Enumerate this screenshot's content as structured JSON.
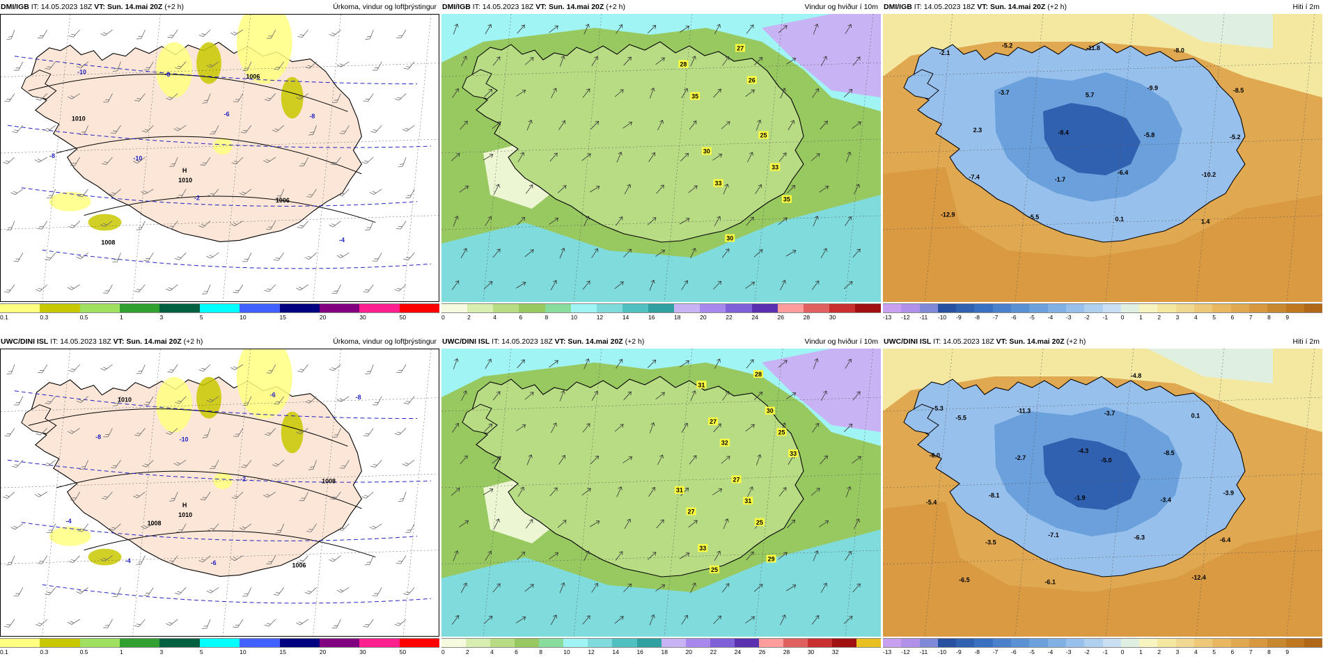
{
  "panels": [
    {
      "model": "DMI/IGB",
      "it_label": "IT:",
      "init": "14.05.2023 18Z",
      "vt_label": "VT:",
      "valid": "Sun. 14.mai 20Z",
      "lead": "(+2 h)",
      "title": "Úrkoma, vindur og loftþrýstingur",
      "type": "precip",
      "colorbar": {
        "labels": [
          "0.1",
          "0.3",
          "0.5",
          "1",
          "3",
          "5",
          "10",
          "15",
          "20",
          "30",
          "50"
        ],
        "colors": [
          "#ffff80",
          "#c8c800",
          "#a0e060",
          "#30a030",
          "#006040",
          "#00ffff",
          "#4060ff",
          "#000080",
          "#800080",
          "#ff2090",
          "#ff0000"
        ]
      },
      "labels": [
        {
          "t": "1010",
          "c": "#000"
        },
        {
          "t": "1006",
          "c": "#000"
        },
        {
          "t": "1008",
          "c": "#000"
        },
        {
          "t": "1006",
          "c": "#000"
        },
        {
          "t": "-10",
          "c": "#2020c0"
        },
        {
          "t": "-8",
          "c": "#2020c0"
        },
        {
          "t": "-6",
          "c": "#2020c0"
        },
        {
          "t": "-4",
          "c": "#2020c0"
        },
        {
          "t": "-2",
          "c": "#2020c0"
        },
        {
          "t": "-8",
          "c": "#2020c0"
        },
        {
          "t": "-6",
          "c": "#2020c0"
        },
        {
          "t": "-10",
          "c": "#2020c0"
        }
      ],
      "high": "H",
      "high_val": "1010"
    },
    {
      "model": "DMI/IGB",
      "it_label": "IT:",
      "init": "14.05.2023 18Z",
      "vt_label": "VT:",
      "valid": "Sun. 14.mai 20Z",
      "lead": "(+2 h)",
      "title": "Vindur og hviður í 10m",
      "type": "wind",
      "colorbar": {
        "labels": [
          "0",
          "2",
          "4",
          "6",
          "8",
          "10",
          "12",
          "14",
          "16",
          "18",
          "20",
          "22",
          "24",
          "26",
          "28",
          "30"
        ],
        "colors": [
          "#f6fbe0",
          "#d8eeb0",
          "#b8dc84",
          "#98c860",
          "#88dc9c",
          "#a0f4f4",
          "#80dcdc",
          "#50c0c0",
          "#30a0a0",
          "#c8b4f4",
          "#a888ec",
          "#8060d8",
          "#5a30b0",
          "#ff9c9c",
          "#e06060",
          "#c83030",
          "#a01010"
        ]
      },
      "labels": [
        {
          "t": "27",
          "c": "#000"
        },
        {
          "t": "28",
          "c": "#000"
        },
        {
          "t": "26",
          "c": "#000"
        },
        {
          "t": "35",
          "c": "#000"
        },
        {
          "t": "25",
          "c": "#000"
        },
        {
          "t": "30",
          "c": "#000"
        },
        {
          "t": "33",
          "c": "#000"
        },
        {
          "t": "33",
          "c": "#000"
        },
        {
          "t": "35",
          "c": "#000"
        },
        {
          "t": "30",
          "c": "#000"
        }
      ]
    },
    {
      "model": "DMI/IGB",
      "it_label": "IT:",
      "init": "14.05.2023 18Z",
      "vt_label": "VT:",
      "valid": "Sun. 14.mai 20Z",
      "lead": "(+2 h)",
      "title": "Hiti í 2m",
      "type": "temp",
      "colorbar": {
        "labels": [
          "-13",
          "-12",
          "-11",
          "-10",
          "-9",
          "-8",
          "-7",
          "-6",
          "-5",
          "-4",
          "-3",
          "-2",
          "-1",
          "0",
          "1",
          "2",
          "3",
          "4",
          "5",
          "6",
          "7",
          "8",
          "9"
        ],
        "colors": [
          "#c8a0f0",
          "#b090e8",
          "#8088d8",
          "#2850a0",
          "#3060b0",
          "#3a70c0",
          "#4a80cc",
          "#5a90d4",
          "#6aa0dc",
          "#80b0e4",
          "#98c0ec",
          "#b0d0f0",
          "#c8e0f4",
          "#e0f0e0",
          "#f8f4c0",
          "#f4e8a0",
          "#f0d890",
          "#ecc878",
          "#e8b860",
          "#e0a850",
          "#d89840",
          "#c88830",
          "#c07820",
          "#b06818"
        ]
      },
      "labels": [
        {
          "t": "1.4",
          "c": "#000"
        },
        {
          "t": "-1.7",
          "c": "#000"
        },
        {
          "t": "-5.2",
          "c": "#000"
        },
        {
          "t": "5.7",
          "c": "#000"
        },
        {
          "t": "-2.1",
          "c": "#000"
        },
        {
          "t": "0.1",
          "c": "#000"
        },
        {
          "t": "-7.4",
          "c": "#000"
        },
        {
          "t": "-5.8",
          "c": "#000"
        },
        {
          "t": "-3.7",
          "c": "#000"
        },
        {
          "t": "-8.0",
          "c": "#000"
        },
        {
          "t": "-5.5",
          "c": "#000"
        },
        {
          "t": "-10.2",
          "c": "#000"
        },
        {
          "t": "-8.4",
          "c": "#000"
        },
        {
          "t": "-8.5",
          "c": "#000"
        },
        {
          "t": "-11.8",
          "c": "#000"
        },
        {
          "t": "-12.9",
          "c": "#000"
        },
        {
          "t": "-6.4",
          "c": "#000"
        },
        {
          "t": "2.3",
          "c": "#000"
        },
        {
          "t": "-9.9",
          "c": "#000"
        },
        {
          "t": "-5.2",
          "c": "#000"
        }
      ]
    },
    {
      "model": "UWC/DINI ISL",
      "it_label": "IT:",
      "init": "14.05.2023 18Z",
      "vt_label": "VT:",
      "valid": "Sun. 14.mai 20Z",
      "lead": "(+2 h)",
      "title": "Úrkoma, vindur og loftþrýstingur",
      "type": "precip",
      "colorbar": {
        "labels": [
          "0.1",
          "0.3",
          "0.5",
          "1",
          "3",
          "5",
          "10",
          "15",
          "20",
          "30",
          "50"
        ],
        "colors": [
          "#ffff80",
          "#c8c800",
          "#a0e060",
          "#30a030",
          "#006040",
          "#00ffff",
          "#4060ff",
          "#000080",
          "#800080",
          "#ff2090",
          "#ff0000"
        ]
      },
      "labels": [
        {
          "t": "1010",
          "c": "#000"
        },
        {
          "t": "1006",
          "c": "#000"
        },
        {
          "t": "1008",
          "c": "#000"
        },
        {
          "t": "1008",
          "c": "#000"
        },
        {
          "t": "-10",
          "c": "#2020c0"
        },
        {
          "t": "-8",
          "c": "#2020c0"
        },
        {
          "t": "-6",
          "c": "#2020c0"
        },
        {
          "t": "-4",
          "c": "#2020c0"
        },
        {
          "t": "-2",
          "c": "#2020c0"
        },
        {
          "t": "-8",
          "c": "#2020c0"
        },
        {
          "t": "-6",
          "c": "#2020c0"
        },
        {
          "t": "-4",
          "c": "#2020c0"
        }
      ],
      "high": "H",
      "high_val": "1010"
    },
    {
      "model": "UWC/DINI ISL",
      "it_label": "IT:",
      "init": "14.05.2023 18Z",
      "vt_label": "VT:",
      "valid": "Sun. 14.mai 20Z",
      "lead": "(+2 h)",
      "title": "Vindur og hviður í 10m",
      "type": "wind",
      "colorbar": {
        "labels": [
          "0",
          "2",
          "4",
          "6",
          "8",
          "10",
          "12",
          "14",
          "16",
          "18",
          "20",
          "22",
          "24",
          "26",
          "28",
          "30",
          "32"
        ],
        "colors": [
          "#f6fbe0",
          "#d8eeb0",
          "#b8dc84",
          "#98c860",
          "#88dc9c",
          "#a0f4f4",
          "#80dcdc",
          "#50c0c0",
          "#30a0a0",
          "#c8b4f4",
          "#a888ec",
          "#8060d8",
          "#5a30b0",
          "#ff9c9c",
          "#e06060",
          "#c83030",
          "#a01010",
          "#e8c020"
        ]
      },
      "labels": [
        {
          "t": "28",
          "c": "#000"
        },
        {
          "t": "31",
          "c": "#000"
        },
        {
          "t": "30",
          "c": "#000"
        },
        {
          "t": "27",
          "c": "#000"
        },
        {
          "t": "25",
          "c": "#000"
        },
        {
          "t": "32",
          "c": "#000"
        },
        {
          "t": "33",
          "c": "#000"
        },
        {
          "t": "27",
          "c": "#000"
        },
        {
          "t": "31",
          "c": "#000"
        },
        {
          "t": "31",
          "c": "#000"
        },
        {
          "t": "27",
          "c": "#000"
        },
        {
          "t": "25",
          "c": "#000"
        },
        {
          "t": "33",
          "c": "#000"
        },
        {
          "t": "29",
          "c": "#000"
        },
        {
          "t": "25",
          "c": "#000"
        }
      ]
    },
    {
      "model": "UWC/DINI ISL",
      "it_label": "IT:",
      "init": "14.05.2023 18Z",
      "vt_label": "VT:",
      "valid": "Sun. 14.mai 20Z",
      "lead": "(+2 h)",
      "title": "Hiti í 2m",
      "type": "temp",
      "colorbar": {
        "labels": [
          "-13",
          "-12",
          "-11",
          "-10",
          "-9",
          "-8",
          "-7",
          "-6",
          "-5",
          "-4",
          "-3",
          "-2",
          "-1",
          "0",
          "1",
          "2",
          "3",
          "4",
          "5",
          "6",
          "7",
          "8",
          "9"
        ],
        "colors": [
          "#c8a0f0",
          "#b090e8",
          "#8088d8",
          "#2850a0",
          "#3060b0",
          "#3a70c0",
          "#4a80cc",
          "#5a90d4",
          "#6aa0dc",
          "#80b0e4",
          "#98c0ec",
          "#b0d0f0",
          "#c8e0f4",
          "#e0f0e0",
          "#f8f4c0",
          "#f4e8a0",
          "#f0d890",
          "#ecc878",
          "#e8b860",
          "#e0a850",
          "#d89840",
          "#c88830",
          "#c07820",
          "#b06818"
        ]
      },
      "labels": [
        {
          "t": "-5.4",
          "c": "#000"
        },
        {
          "t": "-5.0",
          "c": "#000"
        },
        {
          "t": "-5.5",
          "c": "#000"
        },
        {
          "t": "-4.8",
          "c": "#000"
        },
        {
          "t": "-3.5",
          "c": "#000"
        },
        {
          "t": "-3.4",
          "c": "#000"
        },
        {
          "t": "-2.7",
          "c": "#000"
        },
        {
          "t": "0.1",
          "c": "#000"
        },
        {
          "t": "-6.1",
          "c": "#000"
        },
        {
          "t": "-6.4",
          "c": "#000"
        },
        {
          "t": "-1.9",
          "c": "#000"
        },
        {
          "t": "-6.0",
          "c": "#000"
        },
        {
          "t": "-3.7",
          "c": "#000"
        },
        {
          "t": "-6.5",
          "c": "#000"
        },
        {
          "t": "-6.3",
          "c": "#000"
        },
        {
          "t": "-8.1",
          "c": "#000"
        },
        {
          "t": "-8.5",
          "c": "#000"
        },
        {
          "t": "-11.3",
          "c": "#000"
        },
        {
          "t": "-12.4",
          "c": "#000"
        },
        {
          "t": "-7.1",
          "c": "#000"
        },
        {
          "t": "-3.9",
          "c": "#000"
        },
        {
          "t": "-4.3",
          "c": "#000"
        },
        {
          "t": "-5.3",
          "c": "#000"
        }
      ]
    }
  ]
}
